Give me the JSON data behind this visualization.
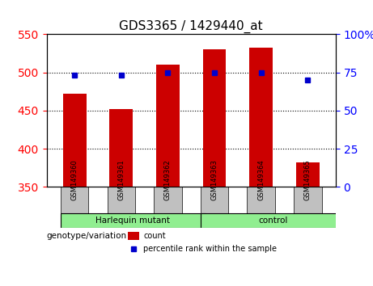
{
  "title": "GDS3365 / 1429440_at",
  "samples": [
    "GSM149360",
    "GSM149361",
    "GSM149362",
    "GSM149363",
    "GSM149364",
    "GSM149365"
  ],
  "counts": [
    472,
    452,
    510,
    530,
    533,
    382
  ],
  "percentile_ranks": [
    73,
    73,
    75,
    75,
    75,
    70
  ],
  "groups": [
    "Harlequin mutant",
    "Harlequin mutant",
    "Harlequin mutant",
    "control",
    "control",
    "control"
  ],
  "group_labels": [
    "Harlequin mutant",
    "control"
  ],
  "group_colors": [
    "#90EE90",
    "#90EE90"
  ],
  "bar_color": "#CC0000",
  "dot_color": "#0000CC",
  "left_ylim": [
    350,
    550
  ],
  "right_ylim": [
    0,
    100
  ],
  "left_yticks": [
    350,
    400,
    450,
    500,
    550
  ],
  "right_yticks": [
    0,
    25,
    50,
    75,
    100
  ],
  "right_yticklabels": [
    "0",
    "25",
    "50",
    "75",
    "100%"
  ],
  "grid_values": [
    400,
    450,
    500
  ],
  "background_plot": "#f0f0f0",
  "background_label": "#c0c0c0"
}
